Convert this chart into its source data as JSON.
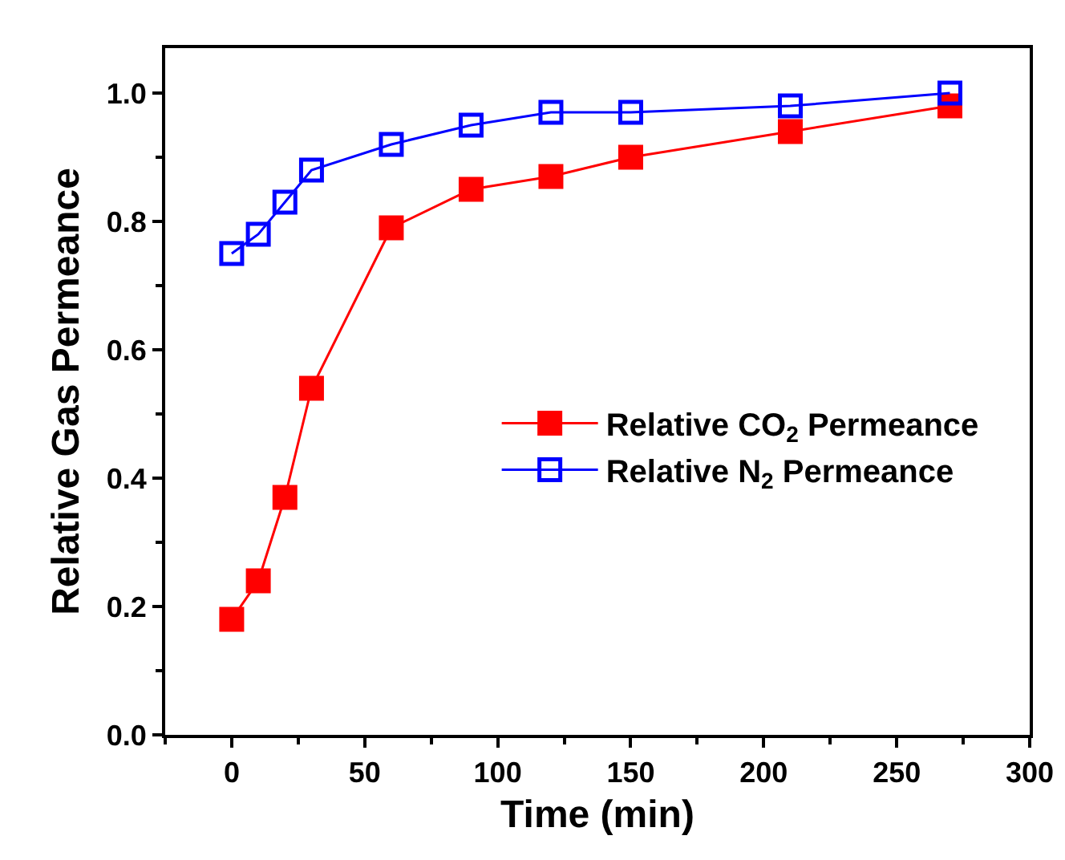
{
  "chart_data": {
    "type": "line",
    "xlabel": "Time (min)",
    "ylabel": "Relative Gas Permeance",
    "x": [
      0,
      10,
      20,
      30,
      60,
      90,
      120,
      150,
      210,
      270
    ],
    "series": [
      {
        "name": "Relative CO$_{2}$ Permeance",
        "color": "#ff0000",
        "marker": "square",
        "values": [
          0.18,
          0.24,
          0.37,
          0.54,
          0.79,
          0.85,
          0.87,
          0.9,
          0.94,
          0.98
        ]
      },
      {
        "name": "Relative N$_{2}$ Permeance",
        "color": "#0000ff",
        "marker": "square-open",
        "values": [
          0.75,
          0.78,
          0.83,
          0.88,
          0.92,
          0.95,
          0.97,
          0.97,
          0.98,
          1.0
        ]
      }
    ],
    "xlim": [
      -25,
      300
    ],
    "xticks": [
      0,
      50,
      100,
      150,
      200,
      250,
      300
    ],
    "ylim": [
      0,
      1.07
    ],
    "yticks": [
      {
        "value": 0,
        "label": "0.0"
      },
      {
        "value": 0.2,
        "label": "0.2"
      },
      {
        "value": 0.4,
        "label": "0.4"
      },
      {
        "value": 0.6,
        "label": "0.6"
      },
      {
        "value": 0.8,
        "label": "0.8"
      },
      {
        "value": 1,
        "label": "1.0"
      }
    ],
    "grid": false,
    "legend": "right",
    "line_style": "solid"
  }
}
